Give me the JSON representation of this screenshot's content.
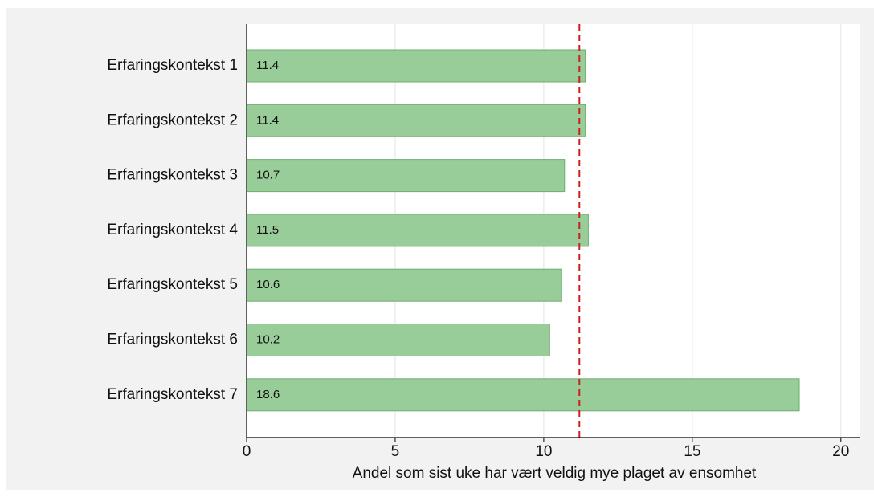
{
  "chart_data": {
    "type": "barh",
    "categories": [
      "Erfaringskontekst 1",
      "Erfaringskontekst 2",
      "Erfaringskontekst 3",
      "Erfaringskontekst 4",
      "Erfaringskontekst 5",
      "Erfaringskontekst 6",
      "Erfaringskontekst 7"
    ],
    "values": [
      11.4,
      11.4,
      10.7,
      11.5,
      10.6,
      10.2,
      18.6
    ],
    "color": "#98cc98",
    "xlabel": "Andel som sist uke har vært veldig mye plaget av ensomhet",
    "xlim": [
      0,
      20.6
    ],
    "xticks": [
      0,
      5,
      10,
      15,
      20
    ],
    "grid": true,
    "reference_line": 11.2,
    "reference_color": "#cc1f1f"
  }
}
